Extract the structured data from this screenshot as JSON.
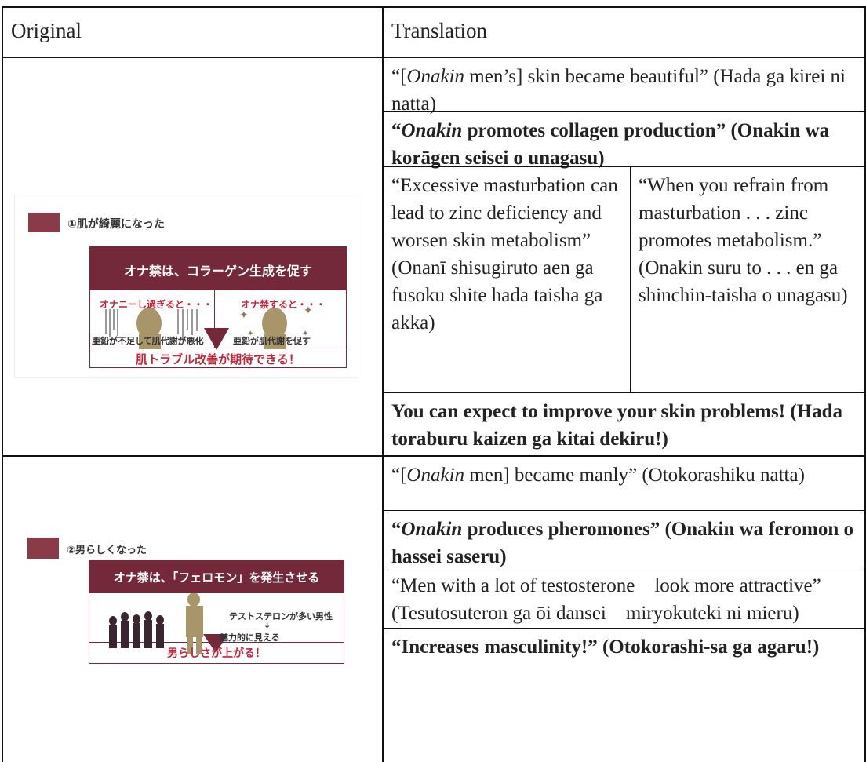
{
  "table": {
    "header": [
      "Original",
      "Translation"
    ],
    "rows": [
      {
        "original": {
          "caption": "①肌が綺麗になった",
          "title": "オナ禁は、コラーゲン生成を促す",
          "left_heading": "オナニーし過ぎると・・・",
          "right_heading": "オナ禁すると・・・",
          "left_caption": "亜鉛が不足して肌代謝が悪化",
          "right_caption": "亜鉛が肌代謝を促す",
          "conclusion": "肌トラブル改善が期待できる！"
        },
        "translation": [
          {
            "parts": [
              "“[",
              {
                "text": "Onakin",
                "style": "italic"
              },
              " men’s] skin became beautiful” (Hada ga kirei ni natta)"
            ]
          },
          {
            "bold": true,
            "parts": [
              "“",
              {
                "text": "Onakin",
                "style": "italic"
              },
              " promotes collagen production” (Onakin wa korāgen seisei o unagasu)"
            ]
          },
          {
            "columns": [
              {
                "parts": [
                  "“Excessive masturbation can lead to zinc deficiency and worsen skin metabolism” (Onanī shisugiruto aen ga fusoku shite hada taisha ga akka)"
                ]
              },
              {
                "parts": [
                  "“When you refrain from masturbation . . . zinc promotes metabolism.” (Onakin suru to . . . en ga shinchin-taisha o unagasu)"
                ]
              }
            ]
          },
          {
            "bold": true,
            "parts": [
              "You can expect to improve your skin problems! (Hada toraburu kaizen ga kitai dekiru!)"
            ]
          }
        ]
      },
      {
        "original": {
          "caption": "②男らしくなった",
          "title": "オナ禁は、「フェロモン」を発生させる",
          "text_top": "テストステロンが多い男性",
          "arrow": "↓",
          "text_bottom": "魅力的に見える",
          "conclusion": "男らしさが上がる！"
        },
        "translation": [
          {
            "parts": [
              "“[",
              {
                "text": "Onakin",
                "style": "italic"
              },
              " men] became manly” (Otokorashiku natta)"
            ]
          },
          {
            "bold": true,
            "parts": [
              "“",
              {
                "text": "Onakin",
                "style": "italic"
              },
              " produces pheromones” (Onakin wa feromon o hassei saseru)"
            ]
          },
          {
            "parts": [
              "“Men with a lot of testosterone　look more attractive” (Tesutosuteron ga ōi dansei　miryokuteki ni mieru)"
            ]
          },
          {
            "bold": true,
            "parts": [
              "“Increases masculinity!” (Otokorashi-sa ga agaru!)"
            ]
          }
        ]
      }
    ]
  }
}
